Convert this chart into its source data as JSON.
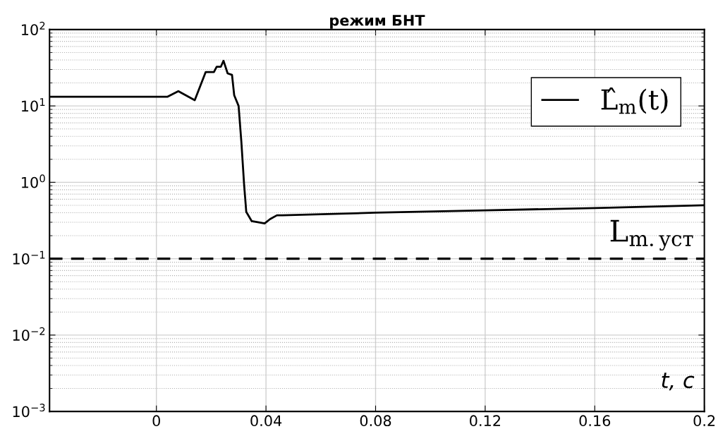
{
  "chart_data": {
    "type": "line",
    "title": "режим БНТ",
    "xlabel": "t, c",
    "log": "y",
    "grid": true,
    "legend": "top right",
    "xlim": [
      -0.039,
      0.2
    ],
    "xticks": [
      0,
      0.04,
      0.08,
      0.12,
      0.16,
      0.2
    ],
    "ylim": [
      0.001,
      100
    ],
    "yticks": [
      {
        "value": 0.001,
        "label": "10$^{−3}$"
      },
      {
        "value": 0.01,
        "label": "10$^{−2}$"
      },
      {
        "value": 0.1,
        "label": "10$^{−1}$"
      },
      {
        "value": 1,
        "label": "10$^{0}$"
      },
      {
        "value": 10,
        "label": "10$^{1}$"
      },
      {
        "value": 100,
        "label": "10$^{2}$"
      }
    ],
    "series": [
      {
        "name": "L̂$_{m}$(t)",
        "color": "#000000",
        "x": [
          -0.039,
          0.0,
          0.0041,
          0.008,
          0.014,
          0.018,
          0.021,
          0.022,
          0.0235,
          0.0245,
          0.0255,
          0.026,
          0.0276,
          0.0284,
          0.03,
          0.031,
          0.032,
          0.0328,
          0.0348,
          0.037,
          0.0395,
          0.0415,
          0.044,
          0.046,
          0.08,
          0.12,
          0.16,
          0.2
        ],
        "values": [
          13.2,
          13.2,
          13.2,
          15.6,
          11.9,
          27.8,
          27.8,
          32.5,
          32.5,
          39,
          30.3,
          26.7,
          25.5,
          13.8,
          10,
          3.44,
          0.95,
          0.41,
          0.31,
          0.3,
          0.29,
          0.33,
          0.37,
          0.37,
          0.4,
          0.43,
          0.46,
          0.5
        ]
      }
    ],
    "ref_lines": [
      {
        "axis": "y",
        "value": 0.1,
        "color": "#000000",
        "line_style": "dashed",
        "label": "L$_{m.уст}$"
      }
    ]
  }
}
